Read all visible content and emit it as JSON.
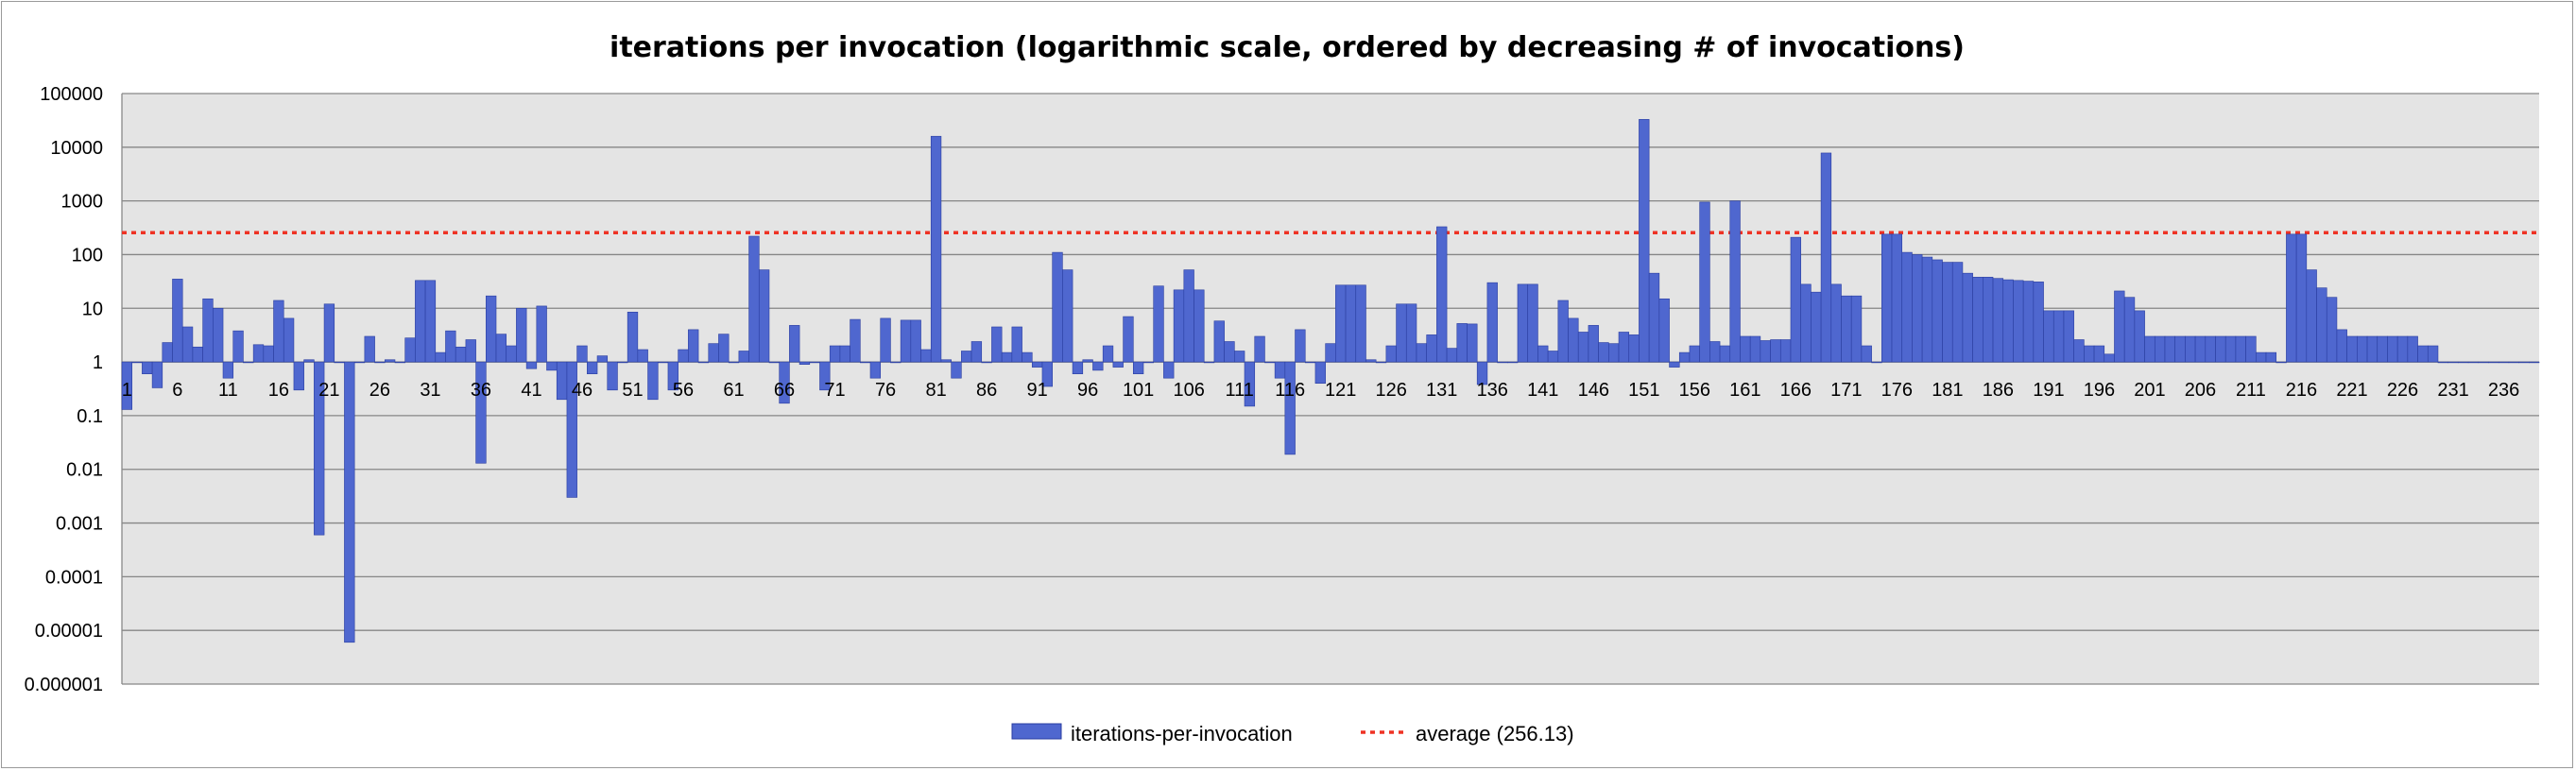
{
  "chart_data": {
    "type": "bar",
    "scale": "log",
    "title": "iterations per invocation (logarithmic scale, ordered by decreasing # of invocations)",
    "xlabel": "",
    "ylabel": "",
    "ylim": [
      1e-06,
      100000
    ],
    "y_ticks": [
      "100000",
      "10000",
      "1000",
      "100",
      "10",
      "1",
      "0.1",
      "0.01",
      "0.001",
      "0.0001",
      "0.00001",
      "0.000001"
    ],
    "x_ticks": [
      "1",
      "6",
      "11",
      "16",
      "21",
      "26",
      "31",
      "36",
      "41",
      "46",
      "51",
      "56",
      "61",
      "66",
      "71",
      "76",
      "81",
      "86",
      "91",
      "96",
      "101",
      "106",
      "111",
      "116",
      "121",
      "126",
      "131",
      "136",
      "141",
      "146",
      "151",
      "156",
      "161",
      "166",
      "171",
      "176",
      "181",
      "186",
      "191",
      "196",
      "201",
      "206",
      "211",
      "216",
      "221",
      "226",
      "231",
      "236"
    ],
    "grid": true,
    "legend_position": "bottom",
    "series": [
      {
        "name": "iterations-per-invocation",
        "color": "#4f67cf",
        "values": [
          0.13,
          1,
          0.6,
          0.33,
          2.3,
          35,
          4.5,
          1.9,
          15,
          10,
          0.5,
          3.8,
          1,
          2.1,
          2,
          14,
          6.5,
          0.3,
          1.1,
          0.0006,
          12,
          1,
          6e-06,
          1,
          3,
          1,
          1.1,
          1,
          2.8,
          33,
          33,
          1.5,
          3.8,
          1.9,
          2.6,
          0.013,
          17,
          3.3,
          2,
          10,
          0.75,
          11,
          0.7,
          0.2,
          0.003,
          2,
          0.6,
          1.3,
          0.3,
          1,
          8.5,
          1.7,
          0.2,
          1,
          0.3,
          1.7,
          4,
          1,
          2.2,
          3.3,
          1,
          1.6,
          220,
          52,
          1,
          0.17,
          4.8,
          0.9,
          1,
          0.3,
          2,
          2,
          6.2,
          1,
          0.5,
          6.5,
          1,
          6,
          6,
          1.7,
          16000,
          1.1,
          0.5,
          1.6,
          2.4,
          1,
          4.5,
          1.5,
          4.5,
          1.5,
          0.8,
          0.35,
          110,
          52,
          0.6,
          1.1,
          0.7,
          2,
          0.8,
          7,
          0.6,
          1,
          26,
          0.5,
          22,
          52,
          22,
          1,
          5.8,
          2.4,
          1.6,
          0.15,
          3,
          1,
          0.5,
          0.019,
          4,
          1,
          0.4,
          2.2,
          27,
          27,
          27,
          1.1,
          1,
          2,
          12,
          12,
          2.2,
          3.2,
          330,
          1.8,
          5.2,
          5.1,
          0.38,
          30,
          1,
          1,
          28,
          28,
          2,
          1.6,
          14,
          6.5,
          3.6,
          4.8,
          2.3,
          2.2,
          3.6,
          3.2,
          33000,
          45,
          15,
          0.8,
          1.5,
          2,
          950,
          2.4,
          2,
          1000,
          3,
          3,
          2.5,
          2.6,
          2.6,
          210,
          28,
          20,
          7800,
          28,
          17,
          17,
          2,
          1,
          240,
          240,
          110,
          100,
          90,
          80,
          72,
          72,
          45,
          38,
          38,
          36,
          34,
          33,
          32,
          31,
          9,
          9,
          9,
          2.6,
          2,
          2,
          1.4,
          21,
          16,
          9,
          3,
          3,
          3,
          3,
          3,
          3,
          3,
          3,
          3,
          3,
          3,
          1.5,
          1.5,
          1,
          240,
          240,
          52,
          24,
          16,
          4,
          3,
          3,
          3,
          3,
          3,
          3,
          3,
          2,
          2,
          1,
          1,
          1,
          1,
          1,
          1,
          1,
          1,
          1,
          1
        ]
      },
      {
        "name": "average (256.13)",
        "type": "line",
        "style": "dotted",
        "color": "#ee3224",
        "value": 256.13
      }
    ]
  },
  "colors": {
    "plot_background": "#e4e4e4",
    "gridline": "#868686",
    "bar": "#4f67cf",
    "bar_edge": "#2a3ea0",
    "average": "#ee3224"
  }
}
